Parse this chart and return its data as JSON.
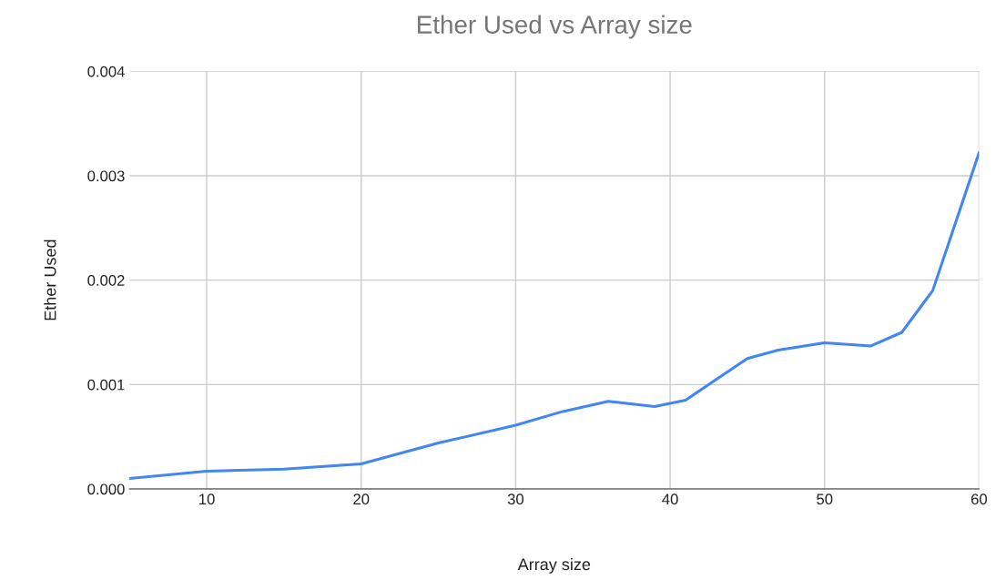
{
  "chart_data": {
    "type": "line",
    "title": "Ether Used vs Array size",
    "xlabel": "Array size",
    "ylabel": "Ether Used",
    "x": [
      5,
      10,
      15,
      20,
      25,
      30,
      33,
      36,
      39,
      41,
      45,
      47,
      50,
      53,
      55,
      57,
      60
    ],
    "series": [
      {
        "color": "#4285f4",
        "values": [
          0.0001,
          0.00017,
          0.00019,
          0.00024,
          0.00044,
          0.00061,
          0.00074,
          0.00084,
          0.00079,
          0.00085,
          0.00125,
          0.00133,
          0.0014,
          0.00137,
          0.0015,
          0.0019,
          0.00322
        ]
      }
    ],
    "xlim": [
      5,
      60
    ],
    "xticks": [
      10,
      20,
      30,
      40,
      50,
      60
    ],
    "ylim": [
      0,
      0.004
    ],
    "yticks": [
      {
        "value": 0,
        "label": "0.000"
      },
      {
        "value": 0.001,
        "label": "0.001"
      },
      {
        "value": 0.002,
        "label": "0.002"
      },
      {
        "value": 0.003,
        "label": "0.003"
      },
      {
        "value": 0.004,
        "label": "0.004"
      }
    ],
    "grid": true,
    "legend": false,
    "marker": "none",
    "line_style": "solid"
  }
}
